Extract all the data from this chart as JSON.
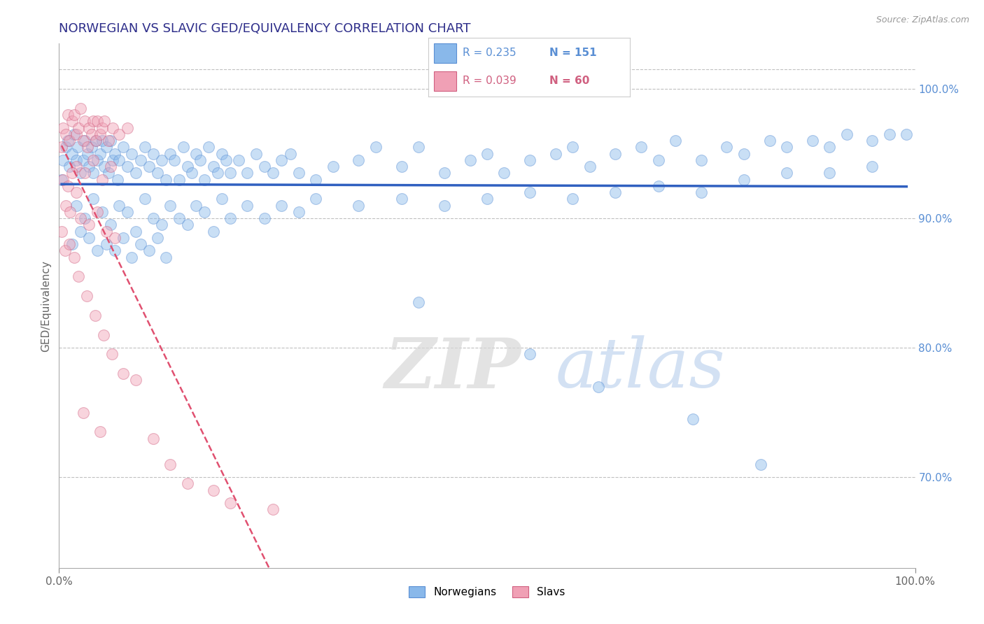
{
  "title": "NORWEGIAN VS SLAVIC GED/EQUIVALENCY CORRELATION CHART",
  "source_text": "Source: ZipAtlas.com",
  "ylabel": "GED/Equivalency",
  "watermark_zip": "ZIP",
  "watermark_atlas": "atlas",
  "legend_blue_r": "R = 0.235",
  "legend_blue_n": "N = 151",
  "legend_pink_r": "R = 0.039",
  "legend_pink_n": "N = 60",
  "legend_blue_label": "Norwegians",
  "legend_pink_label": "Slavs",
  "xlim": [
    0.0,
    100.0
  ],
  "ylim": [
    63.0,
    103.5
  ],
  "right_yticks": [
    70.0,
    80.0,
    90.0,
    100.0
  ],
  "xticks": [
    0.0,
    100.0
  ],
  "xtick_labels": [
    "0.0%",
    "100.0%"
  ],
  "right_ytick_labels": [
    "70.0%",
    "80.0%",
    "90.0%",
    "100.0%"
  ],
  "title_color": "#2e2e8a",
  "title_fontsize": 13,
  "blue_color": "#89b8ea",
  "blue_edge_color": "#5a8fd4",
  "pink_color": "#f0a0b5",
  "pink_edge_color": "#d06080",
  "blue_line_color": "#3060c0",
  "pink_line_color": "#e05070",
  "grid_color": "#c0c0c0",
  "dot_size": 130,
  "dot_alpha": 0.45,
  "blue_points_x": [
    0.3,
    0.5,
    0.8,
    1.0,
    1.2,
    1.5,
    1.8,
    2.0,
    2.2,
    2.5,
    2.8,
    3.0,
    3.3,
    3.5,
    3.8,
    4.0,
    4.3,
    4.5,
    4.8,
    5.0,
    5.3,
    5.5,
    5.8,
    6.0,
    6.3,
    6.5,
    6.8,
    7.0,
    7.5,
    8.0,
    8.5,
    9.0,
    9.5,
    10.0,
    10.5,
    11.0,
    11.5,
    12.0,
    12.5,
    13.0,
    13.5,
    14.0,
    14.5,
    15.0,
    15.5,
    16.0,
    16.5,
    17.0,
    17.5,
    18.0,
    18.5,
    19.0,
    19.5,
    20.0,
    21.0,
    22.0,
    23.0,
    24.0,
    25.0,
    26.0,
    27.0,
    28.0,
    30.0,
    32.0,
    35.0,
    37.0,
    40.0,
    42.0,
    45.0,
    48.0,
    50.0,
    52.0,
    55.0,
    58.0,
    60.0,
    62.0,
    65.0,
    68.0,
    70.0,
    72.0,
    75.0,
    78.0,
    80.0,
    83.0,
    85.0,
    88.0,
    90.0,
    92.0,
    95.0,
    97.0,
    2.0,
    3.0,
    4.0,
    5.0,
    6.0,
    7.0,
    8.0,
    9.0,
    10.0,
    11.0,
    12.0,
    13.0,
    14.0,
    15.0,
    16.0,
    17.0,
    18.0,
    19.0,
    20.0,
    22.0,
    24.0,
    26.0,
    28.0,
    30.0,
    35.0,
    40.0,
    45.0,
    50.0,
    55.0,
    60.0,
    65.0,
    70.0,
    75.0,
    80.0,
    85.0,
    90.0,
    95.0,
    99.0,
    1.5,
    2.5,
    3.5,
    4.5,
    5.5,
    6.5,
    7.5,
    8.5,
    9.5,
    10.5,
    11.5,
    12.5,
    42.0,
    55.0,
    63.0,
    74.0,
    82.0
  ],
  "blue_points_y": [
    93.0,
    94.5,
    95.5,
    96.0,
    94.0,
    95.0,
    96.5,
    94.5,
    95.5,
    93.5,
    94.5,
    96.0,
    95.0,
    94.0,
    95.5,
    93.5,
    96.0,
    94.5,
    95.0,
    96.0,
    94.0,
    95.5,
    93.5,
    96.0,
    94.5,
    95.0,
    93.0,
    94.5,
    95.5,
    94.0,
    95.0,
    93.5,
    94.5,
    95.5,
    94.0,
    95.0,
    93.5,
    94.5,
    93.0,
    95.0,
    94.5,
    93.0,
    95.5,
    94.0,
    93.5,
    95.0,
    94.5,
    93.0,
    95.5,
    94.0,
    93.5,
    95.0,
    94.5,
    93.5,
    94.5,
    93.5,
    95.0,
    94.0,
    93.5,
    94.5,
    95.0,
    93.5,
    93.0,
    94.0,
    94.5,
    95.5,
    94.0,
    95.5,
    93.5,
    94.5,
    95.0,
    93.5,
    94.5,
    95.0,
    95.5,
    94.0,
    95.0,
    95.5,
    94.5,
    96.0,
    94.5,
    95.5,
    95.0,
    96.0,
    95.5,
    96.0,
    95.5,
    96.5,
    96.0,
    96.5,
    91.0,
    90.0,
    91.5,
    90.5,
    89.5,
    91.0,
    90.5,
    89.0,
    91.5,
    90.0,
    89.5,
    91.0,
    90.0,
    89.5,
    91.0,
    90.5,
    89.0,
    91.5,
    90.0,
    91.0,
    90.0,
    91.0,
    90.5,
    91.5,
    91.0,
    91.5,
    91.0,
    91.5,
    92.0,
    91.5,
    92.0,
    92.5,
    92.0,
    93.0,
    93.5,
    93.5,
    94.0,
    96.5,
    88.0,
    89.0,
    88.5,
    87.5,
    88.0,
    87.5,
    88.5,
    87.0,
    88.0,
    87.5,
    88.5,
    87.0,
    83.5,
    79.5,
    77.0,
    74.5,
    71.0
  ],
  "pink_points_x": [
    0.3,
    0.5,
    0.8,
    1.0,
    1.2,
    1.5,
    1.8,
    2.0,
    2.3,
    2.5,
    2.8,
    3.0,
    3.3,
    3.5,
    3.8,
    4.0,
    4.3,
    4.5,
    4.8,
    5.0,
    5.3,
    5.8,
    6.3,
    7.0,
    8.0,
    2.0,
    3.0,
    4.0,
    5.0,
    6.0,
    0.5,
    1.0,
    1.5,
    2.0,
    0.8,
    1.3,
    2.5,
    3.5,
    4.5,
    5.5,
    6.5,
    0.3,
    0.7,
    1.2,
    1.8,
    2.3,
    3.2,
    4.2,
    5.2,
    6.2,
    7.5,
    9.0,
    11.0,
    13.0,
    15.0,
    18.0,
    20.0,
    25.0,
    2.8,
    4.8
  ],
  "pink_points_y": [
    95.5,
    97.0,
    96.5,
    98.0,
    96.0,
    97.5,
    98.0,
    96.5,
    97.0,
    98.5,
    96.0,
    97.5,
    95.5,
    97.0,
    96.5,
    97.5,
    96.0,
    97.5,
    96.5,
    97.0,
    97.5,
    96.0,
    97.0,
    96.5,
    97.0,
    94.0,
    93.5,
    94.5,
    93.0,
    94.0,
    93.0,
    92.5,
    93.5,
    92.0,
    91.0,
    90.5,
    90.0,
    89.5,
    90.5,
    89.0,
    88.5,
    89.0,
    87.5,
    88.0,
    87.0,
    85.5,
    84.0,
    82.5,
    81.0,
    79.5,
    78.0,
    77.5,
    73.0,
    71.0,
    69.5,
    69.0,
    68.0,
    67.5,
    75.0,
    73.5
  ]
}
